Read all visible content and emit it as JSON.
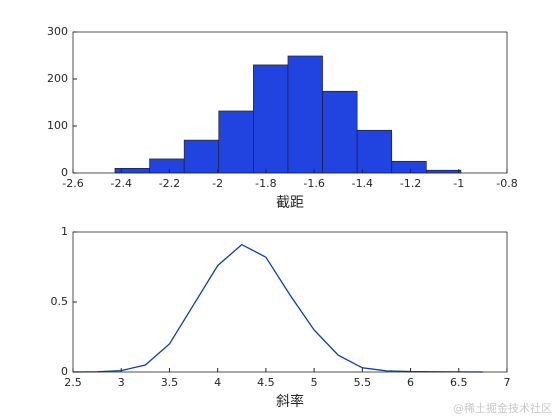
{
  "chart_data": [
    {
      "type": "histogram",
      "xlabel": "截距",
      "bins": [
        -2.426,
        -2.2825,
        -2.139,
        -1.9955,
        -1.852,
        -1.7085,
        -1.565,
        -1.4215,
        -1.278,
        -1.1345,
        -0.991
      ],
      "values": [
        10,
        30,
        70,
        132,
        230,
        249,
        174,
        91,
        25,
        6
      ],
      "color": "#2143e0",
      "xlim": [
        -2.6,
        -0.8
      ],
      "xticks": [
        -2.6,
        -2.4,
        -2.2,
        -2,
        -1.8,
        -1.6,
        -1.4,
        -1.2,
        -1,
        -0.8
      ],
      "ylim": [
        0,
        300
      ],
      "yticks": [
        0,
        100,
        200,
        300
      ]
    },
    {
      "type": "line",
      "xlabel": "斜率",
      "x": [
        2.5,
        2.75,
        3,
        3.25,
        3.5,
        3.75,
        4,
        4.25,
        4.5,
        4.75,
        5,
        5.25,
        5.5,
        5.75,
        6,
        6.25,
        6.5,
        6.75
      ],
      "values": [
        0,
        0.002,
        0.01,
        0.05,
        0.2,
        0.48,
        0.76,
        0.91,
        0.82,
        0.55,
        0.3,
        0.12,
        0.03,
        0.008,
        0.003,
        0.002,
        0.001,
        0
      ],
      "color": "#0b3fa8",
      "xlim": [
        2.5,
        7
      ],
      "xticks": [
        2.5,
        3,
        3.5,
        4,
        4.5,
        5,
        5.5,
        6,
        6.5,
        7
      ],
      "ylim": [
        0,
        1
      ],
      "yticks": [
        0,
        0.5,
        1
      ]
    }
  ],
  "watermark": "@稀土掘金技术社区"
}
